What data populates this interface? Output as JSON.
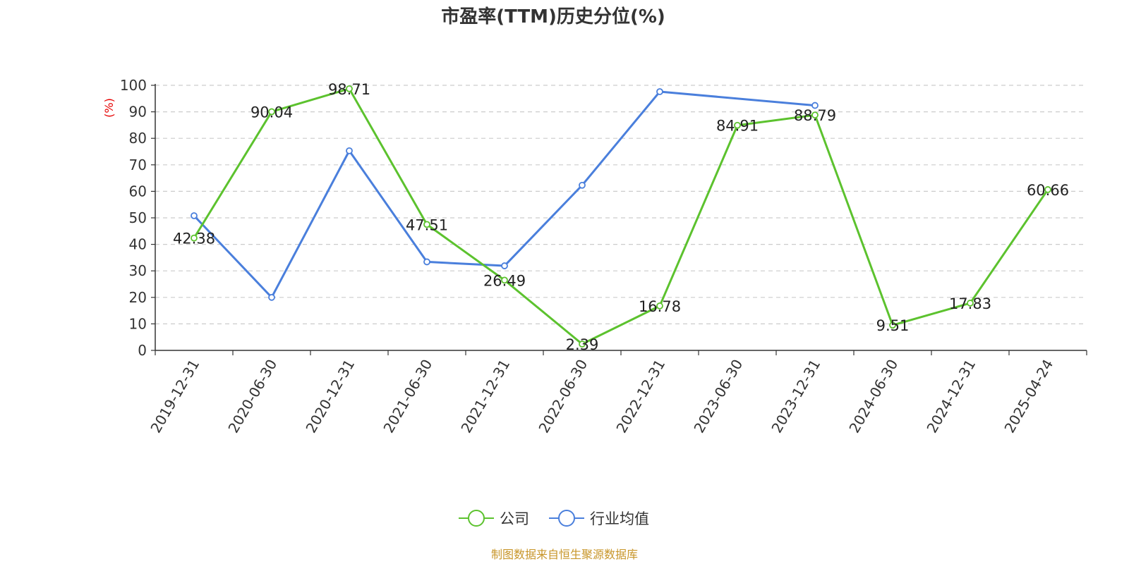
{
  "chart_data": {
    "type": "line",
    "title": "市盈率(TTM)历史分位(%)",
    "ylabel": "(%)",
    "xlabel": "",
    "ylim": [
      0,
      100
    ],
    "y_ticks": [
      0,
      10,
      20,
      30,
      40,
      50,
      60,
      70,
      80,
      90,
      100
    ],
    "grid": "horizontal dashed",
    "legend_position": "bottom-center",
    "categories": [
      "2019-12-31",
      "2020-06-30",
      "2020-12-31",
      "2021-06-30",
      "2021-12-31",
      "2022-06-30",
      "2022-12-31",
      "2023-06-30",
      "2023-12-31",
      "2024-06-30",
      "2024-12-31",
      "2025-04-24"
    ],
    "series": [
      {
        "name": "公司",
        "color": "#5cc22e",
        "values": [
          42.38,
          90.04,
          98.71,
          47.51,
          26.49,
          2.39,
          16.78,
          84.91,
          88.79,
          9.51,
          17.83,
          60.66
        ],
        "labels": [
          "42.38",
          "90.04",
          "98.71",
          "47.51",
          "26.49",
          "2.39",
          "16.78",
          "84.91",
          "88.79",
          "9.51",
          "17.83",
          "60.66"
        ]
      },
      {
        "name": "行业均值",
        "color": "#4a7fdc",
        "values": [
          50.8,
          20.0,
          75.3,
          33.4,
          31.9,
          62.3,
          97.6,
          null,
          92.4,
          null,
          null,
          null
        ]
      }
    ]
  },
  "source_text": "制图数据来自恒生聚源数据库"
}
